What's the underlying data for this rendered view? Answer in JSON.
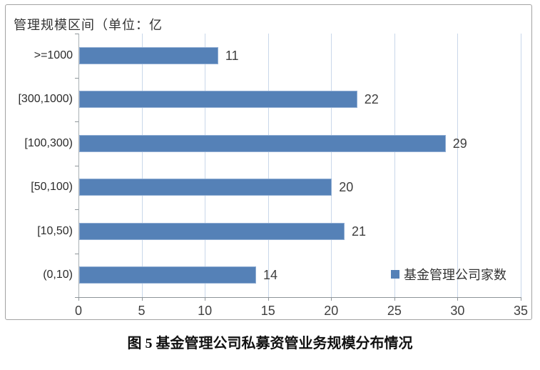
{
  "figure_caption": "图 5 基金管理公司私募资管业务规模分布情况",
  "chart_data": {
    "type": "bar",
    "orientation": "horizontal",
    "title": "管理规模区间（单位：亿",
    "categories": [
      ">=1000",
      "[300,1000)",
      "[100,300)",
      "[50,100)",
      "[10,50)",
      "(0,10)"
    ],
    "values": [
      11,
      22,
      29,
      20,
      21,
      14
    ],
    "series": [
      {
        "name": "基金管理公司家数",
        "values": [
          11,
          22,
          29,
          20,
          21,
          14
        ]
      }
    ],
    "xlabel": "",
    "ylabel": "管理规模区间（单位：亿",
    "xlim": [
      0,
      35
    ],
    "x_ticks": [
      0,
      5,
      10,
      15,
      20,
      25,
      30,
      35
    ],
    "grid": true,
    "legend": {
      "label": "基金管理公司家数",
      "position": "inside-bottom-right",
      "marker_color": "#5581b7"
    },
    "colors": {
      "bar_fill": "#5581b7",
      "bar_border": "#8fadd3",
      "gridline": "#c9d7ea",
      "axis": "#8e9599",
      "text": "#3f3f3f"
    }
  }
}
